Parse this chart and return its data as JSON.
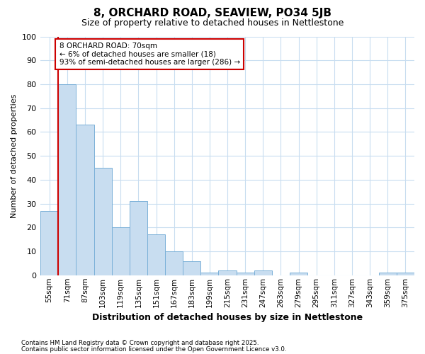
{
  "title_line1": "8, ORCHARD ROAD, SEAVIEW, PO34 5JB",
  "title_line2": "Size of property relative to detached houses in Nettlestone",
  "xlabel": "Distribution of detached houses by size in Nettlestone",
  "ylabel": "Number of detached properties",
  "categories": [
    "55sqm",
    "71sqm",
    "87sqm",
    "103sqm",
    "119sqm",
    "135sqm",
    "151sqm",
    "167sqm",
    "183sqm",
    "199sqm",
    "215sqm",
    "231sqm",
    "247sqm",
    "263sqm",
    "279sqm",
    "295sqm",
    "311sqm",
    "327sqm",
    "343sqm",
    "359sqm",
    "375sqm"
  ],
  "values": [
    27,
    80,
    63,
    45,
    20,
    31,
    17,
    10,
    6,
    1,
    2,
    1,
    2,
    0,
    1,
    0,
    0,
    0,
    0,
    1,
    1
  ],
  "bar_color": "#c8ddf0",
  "bar_edge_color": "#7ab0d8",
  "grid_color": "#c8ddf0",
  "background_color": "#ffffff",
  "annotation_box_color": "#cc0000",
  "property_line_color": "#cc0000",
  "property_label": "8 ORCHARD ROAD: 70sqm",
  "stat_line1": "← 6% of detached houses are smaller (18)",
  "stat_line2": "93% of semi-detached houses are larger (286) →",
  "property_bin_index": 1,
  "ylim": [
    0,
    100
  ],
  "yticks": [
    0,
    10,
    20,
    30,
    40,
    50,
    60,
    70,
    80,
    90,
    100
  ],
  "footnote1": "Contains HM Land Registry data © Crown copyright and database right 2025.",
  "footnote2": "Contains public sector information licensed under the Open Government Licence v3.0."
}
